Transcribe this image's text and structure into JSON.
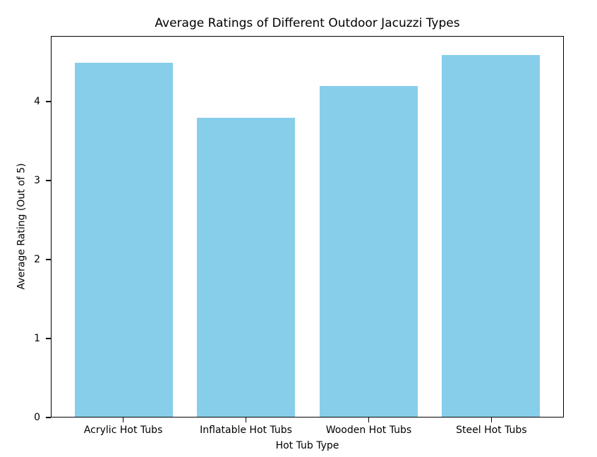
{
  "chart_data": {
    "type": "bar",
    "title": "Average Ratings of Different Outdoor Jacuzzi Types",
    "xlabel": "Hot Tub Type",
    "ylabel": "Average Rating (Out of 5)",
    "categories": [
      "Acrylic Hot Tubs",
      "Inflatable Hot Tubs",
      "Wooden Hot Tubs",
      "Steel Hot Tubs"
    ],
    "values": [
      4.5,
      3.8,
      4.2,
      4.6
    ],
    "yticks": [
      "0",
      "1",
      "2",
      "3",
      "4"
    ],
    "ytick_values": [
      0,
      1,
      2,
      3,
      4
    ],
    "ylim": [
      0,
      4.83
    ],
    "xlim": [
      -0.59,
      3.59
    ],
    "bar_width": 0.8,
    "bar_color": "#87CEEB",
    "axis_color": "#000000",
    "background_color": "#ffffff",
    "grid": false,
    "legend": null
  }
}
